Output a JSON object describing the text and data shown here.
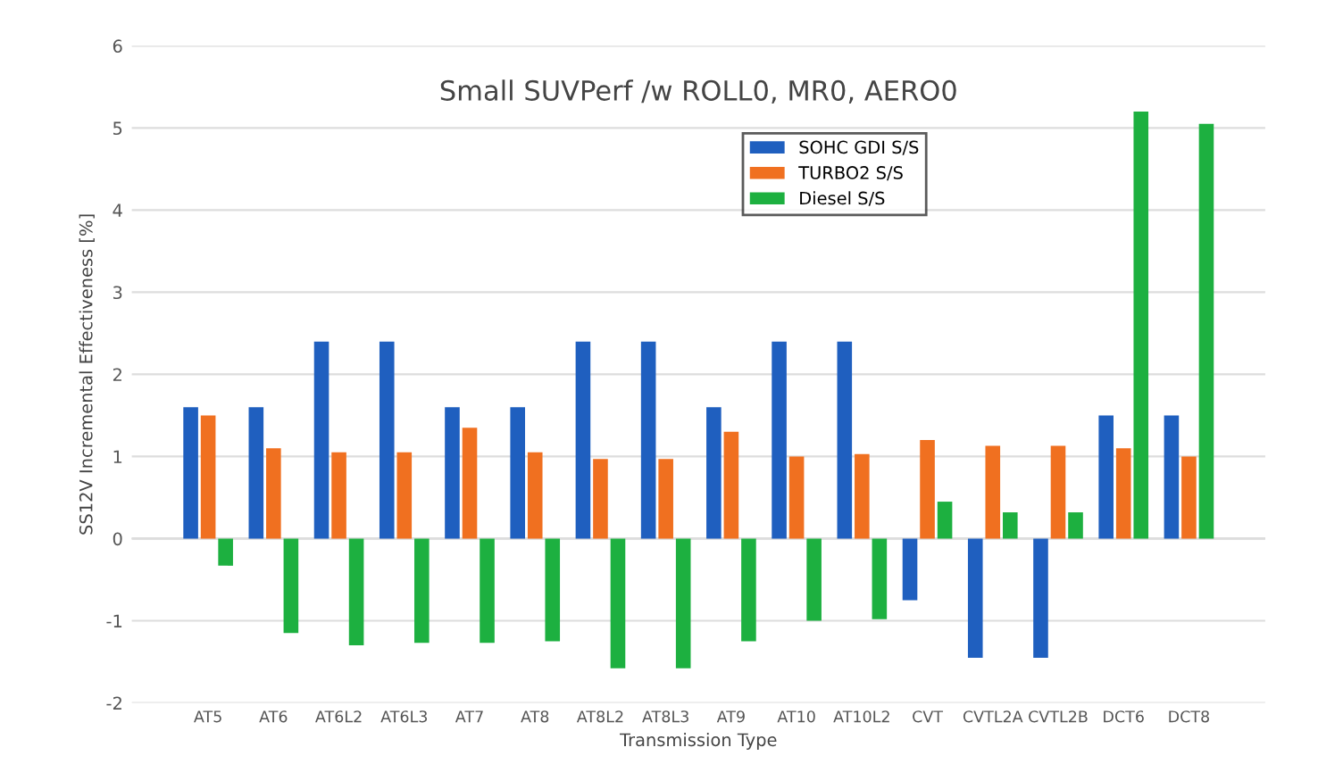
{
  "chart_data": {
    "type": "bar",
    "title": "Small SUVPerf /w ROLL0, MR0, AERO0",
    "xlabel": "Transmission Type",
    "ylabel": "SS12V Incremental Effectiveness [%]",
    "categories": [
      "AT5",
      "AT6",
      "AT6L2",
      "AT6L3",
      "AT7",
      "AT8",
      "AT8L2",
      "AT8L3",
      "AT9",
      "AT10",
      "AT10L2",
      "CVT",
      "CVTL2A",
      "CVTL2B",
      "DCT6",
      "DCT8"
    ],
    "series": [
      {
        "name": "SOHC GDI S/S",
        "color": "#1f5fbf",
        "values": [
          1.6,
          1.6,
          2.4,
          2.4,
          1.6,
          1.6,
          2.4,
          2.4,
          1.6,
          2.4,
          2.4,
          -0.75,
          -1.45,
          -1.45,
          1.5,
          1.5
        ]
      },
      {
        "name": "TURBO2 S/S",
        "color": "#f07020",
        "values": [
          1.5,
          1.1,
          1.05,
          1.05,
          1.35,
          1.05,
          0.97,
          0.97,
          1.3,
          1.0,
          1.03,
          1.2,
          1.13,
          1.13,
          1.1,
          1.0
        ]
      },
      {
        "name": "Diesel S/S",
        "color": "#1db040",
        "values": [
          -0.33,
          -1.15,
          -1.3,
          -1.27,
          -1.27,
          -1.25,
          -1.58,
          -1.58,
          -1.25,
          -1.0,
          -0.98,
          0.45,
          0.32,
          0.32,
          5.2,
          5.05
        ]
      }
    ],
    "ylim": [
      -2,
      6
    ],
    "yticks": [
      -2,
      -1,
      0,
      1,
      2,
      3,
      4,
      5,
      6
    ],
    "grid": "y",
    "legend": "top"
  }
}
